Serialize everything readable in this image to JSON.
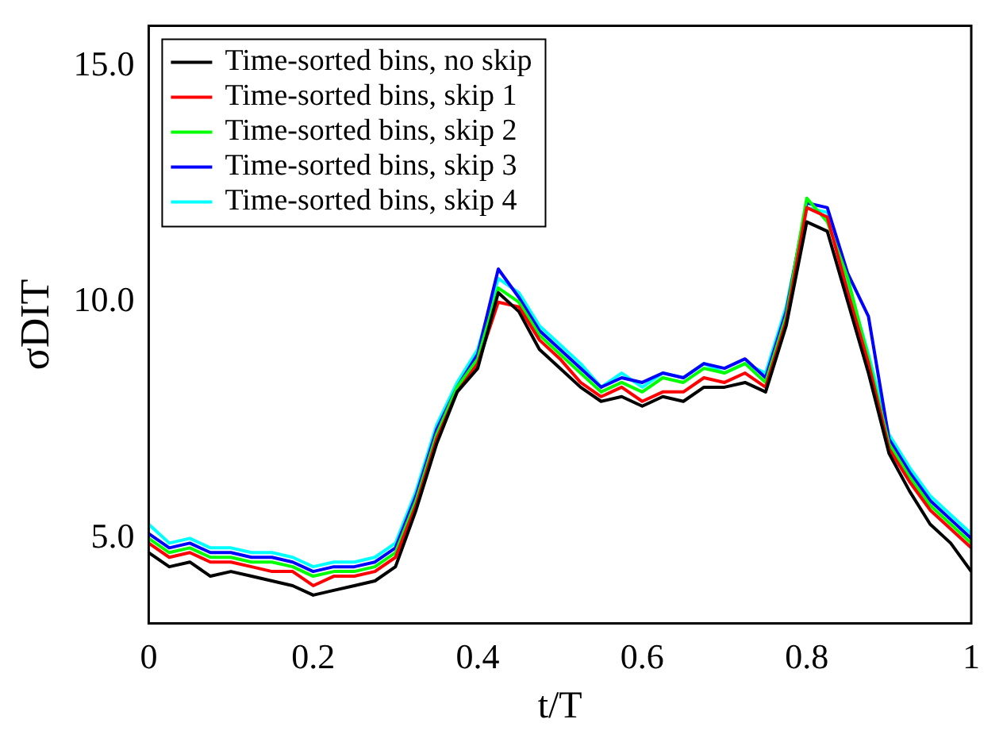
{
  "chart_data": {
    "type": "line",
    "xlabel": "t/T",
    "ylabel": "σDIT",
    "x": [
      0,
      0.025,
      0.05,
      0.075,
      0.1,
      0.125,
      0.15,
      0.175,
      0.2,
      0.225,
      0.25,
      0.275,
      0.3,
      0.325,
      0.35,
      0.375,
      0.4,
      0.425,
      0.45,
      0.475,
      0.5,
      0.525,
      0.55,
      0.575,
      0.6,
      0.625,
      0.65,
      0.675,
      0.7,
      0.725,
      0.75,
      0.775,
      0.8,
      0.825,
      0.85,
      0.875,
      0.9,
      0.925,
      0.95,
      0.975,
      1
    ],
    "series": [
      {
        "name": "Time-sorted bins, no skip",
        "color": "#000000",
        "values": [
          4.7,
          4.4,
          4.5,
          4.2,
          4.3,
          4.2,
          4.1,
          4.0,
          3.8,
          3.9,
          4.0,
          4.1,
          4.4,
          5.6,
          7.0,
          8.1,
          8.6,
          10.2,
          9.8,
          9.0,
          8.6,
          8.2,
          7.9,
          8.0,
          7.8,
          8.0,
          7.9,
          8.2,
          8.2,
          8.3,
          8.1,
          9.5,
          11.7,
          11.5,
          10.0,
          8.5,
          6.8,
          6.0,
          5.3,
          4.9,
          4.3
        ]
      },
      {
        "name": "Time-sorted bins, skip 1",
        "color": "#ff0000",
        "values": [
          4.9,
          4.6,
          4.7,
          4.5,
          4.5,
          4.4,
          4.3,
          4.3,
          4.0,
          4.2,
          4.2,
          4.3,
          4.6,
          5.7,
          7.1,
          8.1,
          8.7,
          10.0,
          9.9,
          9.2,
          8.8,
          8.3,
          8.0,
          8.2,
          7.9,
          8.1,
          8.1,
          8.4,
          8.3,
          8.5,
          8.2,
          9.6,
          12.0,
          11.8,
          10.2,
          8.7,
          6.9,
          6.2,
          5.6,
          5.2,
          4.8
        ]
      },
      {
        "name": "Time-sorted bins, skip 2",
        "color": "#00ff00",
        "values": [
          5.0,
          4.7,
          4.8,
          4.6,
          4.6,
          4.5,
          4.5,
          4.4,
          4.2,
          4.3,
          4.3,
          4.4,
          4.7,
          5.8,
          7.2,
          8.2,
          8.8,
          10.3,
          10.0,
          9.3,
          8.9,
          8.5,
          8.1,
          8.3,
          8.1,
          8.4,
          8.3,
          8.6,
          8.5,
          8.7,
          8.3,
          9.7,
          12.2,
          11.7,
          10.5,
          8.8,
          7.0,
          6.3,
          5.7,
          5.3,
          4.9
        ]
      },
      {
        "name": "Time-sorted bins, skip 3",
        "color": "#0000ff",
        "values": [
          5.1,
          4.8,
          4.9,
          4.7,
          4.7,
          4.6,
          4.6,
          4.5,
          4.3,
          4.4,
          4.4,
          4.5,
          4.8,
          5.9,
          7.3,
          8.2,
          8.9,
          10.7,
          10.1,
          9.4,
          9.0,
          8.6,
          8.2,
          8.4,
          8.3,
          8.5,
          8.4,
          8.7,
          8.6,
          8.8,
          8.4,
          9.8,
          12.1,
          12.0,
          10.6,
          9.7,
          7.1,
          6.4,
          5.8,
          5.4,
          5.0
        ]
      },
      {
        "name": "Time-sorted bins, skip 4",
        "color": "#00ffff",
        "values": [
          5.3,
          4.9,
          5.0,
          4.8,
          4.8,
          4.7,
          4.7,
          4.6,
          4.4,
          4.5,
          4.5,
          4.6,
          4.9,
          6.0,
          7.4,
          8.3,
          9.0,
          10.5,
          10.2,
          9.5,
          9.1,
          8.7,
          8.2,
          8.5,
          8.2,
          8.5,
          8.4,
          8.7,
          8.5,
          8.7,
          8.5,
          9.9,
          12.0,
          11.9,
          10.4,
          8.9,
          7.2,
          6.5,
          5.9,
          5.5,
          5.1
        ]
      }
    ],
    "xlim": [
      0,
      1
    ],
    "xticks": [
      0,
      0.2,
      0.4,
      0.6,
      0.8,
      1
    ],
    "ylim": [
      3.2,
      15.85
    ],
    "yticks": [
      {
        "value": 5,
        "label": "5.0"
      },
      {
        "value": 10,
        "label": "10.0"
      },
      {
        "value": 15,
        "label": "15.0"
      }
    ],
    "grid": false,
    "legend": "top left",
    "marker": "none",
    "line_style": "solid"
  }
}
